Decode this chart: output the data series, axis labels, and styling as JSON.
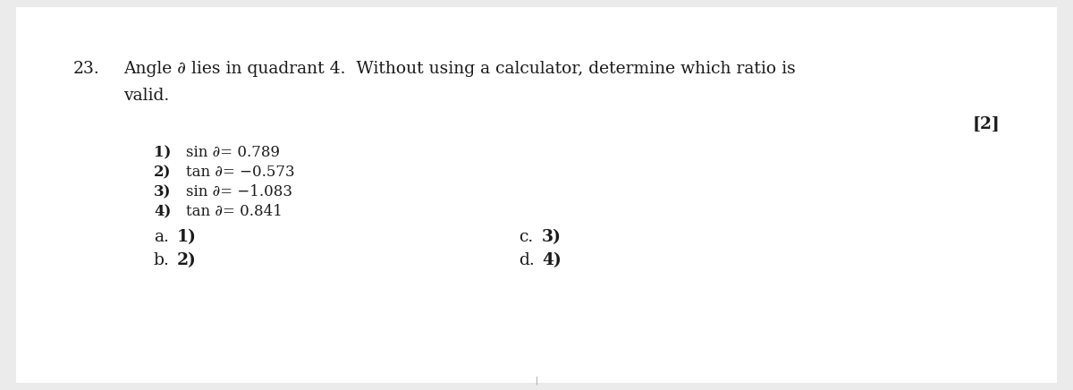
{
  "background_color": "#ebebeb",
  "page_background": "#ffffff",
  "question_number": "23.",
  "marks": "[2]",
  "text_color": "#1a1a1a",
  "font_size_main": 13.5,
  "font_size_options": 12.0,
  "font_size_answers": 13.5,
  "font_size_marks": 13.5,
  "q_line1": "Angle ∂ lies in quadrant 4.  Without using a calculator, determine which ratio is",
  "q_line2": "valid.",
  "opt_numbers": [
    "1)",
    "2)",
    "3)",
    "4)"
  ],
  "opt_texts": [
    "sin ∂= 0.789",
    "tan ∂= −0.573",
    "sin ∂= −1.083",
    "tan ∂= 0.841"
  ],
  "ans_labels": [
    "a.",
    "b.",
    "c.",
    "d."
  ],
  "ans_choices": [
    "1)",
    "2)",
    "3)",
    "4)"
  ]
}
